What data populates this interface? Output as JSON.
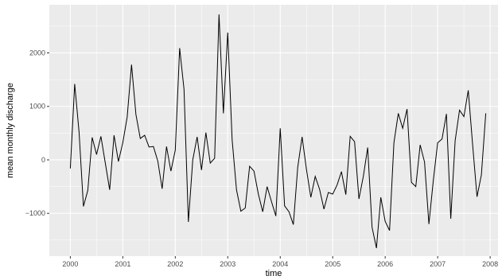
{
  "chart_data": {
    "type": "line",
    "title": "",
    "xlabel": "time",
    "ylabel": "mean monthly discharge",
    "xlim": [
      1999.6,
      2008.15
    ],
    "ylim": [
      -1800,
      2900
    ],
    "x_ticks": [
      2000,
      2001,
      2002,
      2003,
      2004,
      2005,
      2006,
      2007,
      2008
    ],
    "x_tick_labels": [
      "2000",
      "2001",
      "2002",
      "2003",
      "2004",
      "2005",
      "2006",
      "2007",
      "2008"
    ],
    "y_ticks": [
      -1000,
      0,
      1000,
      2000
    ],
    "y_tick_labels": [
      "−1000",
      "0",
      "1000",
      "2000"
    ],
    "grid": true,
    "legend": "none",
    "colors": {
      "panel": "#ebebeb",
      "grid": "#ffffff",
      "line": "#000000"
    },
    "start": 2000.0,
    "step": 0.08333,
    "values": [
      -160,
      1420,
      520,
      -870,
      -570,
      420,
      100,
      440,
      -60,
      -560,
      460,
      -30,
      320,
      800,
      1780,
      850,
      400,
      460,
      240,
      250,
      -20,
      -540,
      250,
      -210,
      180,
      2090,
      1320,
      -1160,
      0,
      430,
      -190,
      510,
      -60,
      30,
      2720,
      870,
      2380,
      380,
      -560,
      -960,
      -900,
      -120,
      -210,
      -640,
      -970,
      -500,
      -780,
      -1050,
      590,
      -860,
      -970,
      -1210,
      -140,
      430,
      -180,
      -700,
      -310,
      -550,
      -920,
      -610,
      -640,
      -470,
      -220,
      -650,
      440,
      340,
      -730,
      -310,
      230,
      -1260,
      -1650,
      -700,
      -1150,
      -1320,
      320,
      870,
      590,
      950,
      -420,
      -500,
      280,
      -40,
      -1200,
      -390,
      320,
      390,
      860,
      -1100,
      360,
      930,
      810,
      1300,
      280,
      -690,
      -280,
      870
    ]
  }
}
